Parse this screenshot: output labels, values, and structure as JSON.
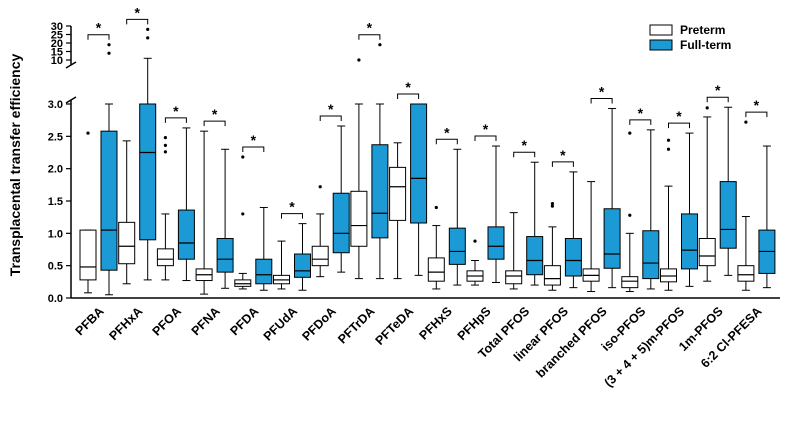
{
  "chart_data": {
    "type": "box",
    "ylabel": "Transplacental transfer efficiency",
    "y_axis": {
      "lower": {
        "range": [
          0,
          3.0
        ],
        "ticks": [
          "0.0",
          "0.5",
          "1.0",
          "1.5",
          "2.0",
          "2.5",
          "3.0"
        ]
      },
      "upper": {
        "range": [
          10,
          30
        ],
        "ticks": [
          "10",
          "15",
          "20",
          "25",
          "30"
        ]
      }
    },
    "legend_position": "top-right",
    "series": [
      {
        "name": "Preterm",
        "color": "#ffffff"
      },
      {
        "name": "Full-term",
        "color": "#1b9ad6"
      }
    ],
    "significance_marker": "*",
    "groups": [
      {
        "label": "PFBA",
        "preterm": {
          "min": 0.08,
          "q1": 0.28,
          "median": 0.48,
          "q3": 1.05,
          "max": 1.05
        },
        "fullterm": {
          "min": 0.05,
          "q1": 0.43,
          "median": 1.05,
          "q3": 2.58,
          "max": 3.0
        },
        "outliers": [
          {
            "series": "Preterm",
            "value": 2.55
          },
          {
            "series": "Full-term",
            "value": 14
          },
          {
            "series": "Full-term",
            "value": 19
          }
        ]
      },
      {
        "label": "PFHxA",
        "preterm": {
          "min": 0.22,
          "q1": 0.53,
          "median": 0.8,
          "q3": 1.17,
          "max": 2.43
        },
        "fullterm": {
          "min": 0.28,
          "q1": 0.9,
          "median": 2.25,
          "q3": 3.0,
          "max": 11
        },
        "outliers": [
          {
            "series": "Full-term",
            "value": 23
          },
          {
            "series": "Full-term",
            "value": 28
          }
        ]
      },
      {
        "label": "PFOA",
        "preterm": {
          "min": 0.28,
          "q1": 0.5,
          "median": 0.6,
          "q3": 0.76,
          "max": 1.3
        },
        "fullterm": {
          "min": 0.27,
          "q1": 0.6,
          "median": 0.85,
          "q3": 1.36,
          "max": 2.63
        },
        "outliers": [
          {
            "series": "Preterm",
            "value": 2.48
          },
          {
            "series": "Preterm",
            "value": 2.36
          },
          {
            "series": "Preterm",
            "value": 2.26
          }
        ]
      },
      {
        "label": "PFNA",
        "preterm": {
          "min": 0.06,
          "q1": 0.27,
          "median": 0.36,
          "q3": 0.45,
          "max": 2.58
        },
        "fullterm": {
          "min": 0.15,
          "q1": 0.4,
          "median": 0.6,
          "q3": 0.92,
          "max": 2.3
        },
        "outliers": []
      },
      {
        "label": "PFDA",
        "preterm": {
          "min": 0.14,
          "q1": 0.18,
          "median": 0.22,
          "q3": 0.28,
          "max": 0.38
        },
        "fullterm": {
          "min": 0.12,
          "q1": 0.22,
          "median": 0.36,
          "q3": 0.6,
          "max": 1.4
        },
        "outliers": [
          {
            "series": "Preterm",
            "value": 1.3
          },
          {
            "series": "Preterm",
            "value": 2.18
          }
        ]
      },
      {
        "label": "PFUdA",
        "preterm": {
          "min": 0.14,
          "q1": 0.22,
          "median": 0.28,
          "q3": 0.35,
          "max": 0.88
        },
        "fullterm": {
          "min": 0.12,
          "q1": 0.32,
          "median": 0.42,
          "q3": 0.68,
          "max": 1.15
        },
        "outliers": []
      },
      {
        "label": "PFDoA",
        "preterm": {
          "min": 0.33,
          "q1": 0.5,
          "median": 0.6,
          "q3": 0.8,
          "max": 1.3
        },
        "fullterm": {
          "min": 0.4,
          "q1": 0.7,
          "median": 1.0,
          "q3": 1.62,
          "max": 2.66
        },
        "outliers": [
          {
            "series": "Preterm",
            "value": 1.72
          }
        ]
      },
      {
        "label": "PFTrDA",
        "preterm": {
          "min": 0.3,
          "q1": 0.8,
          "median": 1.12,
          "q3": 1.65,
          "max": 3.0
        },
        "fullterm": {
          "min": 0.3,
          "q1": 0.93,
          "median": 1.31,
          "q3": 2.37,
          "max": 3.0
        },
        "outliers": [
          {
            "series": "Preterm",
            "value": 10
          },
          {
            "series": "Full-term",
            "value": 19
          }
        ]
      },
      {
        "label": "PFTeDA",
        "preterm": {
          "min": 0.3,
          "q1": 1.2,
          "median": 1.72,
          "q3": 2.02,
          "max": 2.4
        },
        "fullterm": {
          "min": 0.35,
          "q1": 1.16,
          "median": 1.85,
          "q3": 3.0,
          "max": 3.0
        },
        "outliers": []
      },
      {
        "label": "PFHxS",
        "preterm": {
          "min": 0.14,
          "q1": 0.26,
          "median": 0.4,
          "q3": 0.62,
          "max": 1.12
        },
        "fullterm": {
          "min": 0.2,
          "q1": 0.52,
          "median": 0.72,
          "q3": 1.08,
          "max": 2.3
        },
        "outliers": [
          {
            "series": "Preterm",
            "value": 1.4
          }
        ]
      },
      {
        "label": "PFHpS",
        "preterm": {
          "min": 0.2,
          "q1": 0.26,
          "median": 0.34,
          "q3": 0.42,
          "max": 0.58
        },
        "fullterm": {
          "min": 0.24,
          "q1": 0.6,
          "median": 0.8,
          "q3": 1.1,
          "max": 2.35
        },
        "outliers": [
          {
            "series": "Preterm",
            "value": 0.88
          }
        ]
      },
      {
        "label": "Total PFOS",
        "preterm": {
          "min": 0.14,
          "q1": 0.22,
          "median": 0.34,
          "q3": 0.42,
          "max": 1.32
        },
        "fullterm": {
          "min": 0.2,
          "q1": 0.36,
          "median": 0.58,
          "q3": 0.95,
          "max": 2.1
        },
        "outliers": []
      },
      {
        "label": "linear PFOS",
        "preterm": {
          "min": 0.12,
          "q1": 0.2,
          "median": 0.3,
          "q3": 0.5,
          "max": 1.1
        },
        "fullterm": {
          "min": 0.16,
          "q1": 0.34,
          "median": 0.58,
          "q3": 0.92,
          "max": 1.95
        },
        "outliers": [
          {
            "series": "Preterm",
            "value": 1.42
          },
          {
            "series": "Preterm",
            "value": 1.46
          }
        ]
      },
      {
        "label": "branched PFOS",
        "preterm": {
          "min": 0.1,
          "q1": 0.26,
          "median": 0.35,
          "q3": 0.45,
          "max": 1.8
        },
        "fullterm": {
          "min": 0.16,
          "q1": 0.46,
          "median": 0.68,
          "q3": 1.38,
          "max": 2.93
        },
        "outliers": []
      },
      {
        "label": "iso-PFOS",
        "preterm": {
          "min": 0.1,
          "q1": 0.16,
          "median": 0.26,
          "q3": 0.33,
          "max": 1.0
        },
        "fullterm": {
          "min": 0.14,
          "q1": 0.3,
          "median": 0.54,
          "q3": 1.04,
          "max": 2.6
        },
        "outliers": [
          {
            "series": "Preterm",
            "value": 1.28
          },
          {
            "series": "Preterm",
            "value": 2.55
          }
        ]
      },
      {
        "label": "(3 + 4 + 5)m-PFOS",
        "preterm": {
          "min": 0.12,
          "q1": 0.25,
          "median": 0.34,
          "q3": 0.45,
          "max": 1.73
        },
        "fullterm": {
          "min": 0.18,
          "q1": 0.45,
          "median": 0.74,
          "q3": 1.3,
          "max": 2.55
        },
        "outliers": [
          {
            "series": "Preterm",
            "value": 2.3
          },
          {
            "series": "Preterm",
            "value": 2.44
          }
        ]
      },
      {
        "label": "1m-PFOS",
        "preterm": {
          "min": 0.26,
          "q1": 0.5,
          "median": 0.65,
          "q3": 0.92,
          "max": 2.8
        },
        "fullterm": {
          "min": 0.35,
          "q1": 0.77,
          "median": 1.06,
          "q3": 1.8,
          "max": 2.95
        },
        "outliers": [
          {
            "series": "Preterm",
            "value": 2.94
          }
        ]
      },
      {
        "label": "6:2 Cl-PFESA",
        "preterm": {
          "min": 0.12,
          "q1": 0.26,
          "median": 0.36,
          "q3": 0.5,
          "max": 1.26
        },
        "fullterm": {
          "min": 0.16,
          "q1": 0.38,
          "median": 0.72,
          "q3": 1.05,
          "max": 2.35
        },
        "outliers": [
          {
            "series": "Preterm",
            "value": 2.72
          }
        ]
      }
    ]
  }
}
